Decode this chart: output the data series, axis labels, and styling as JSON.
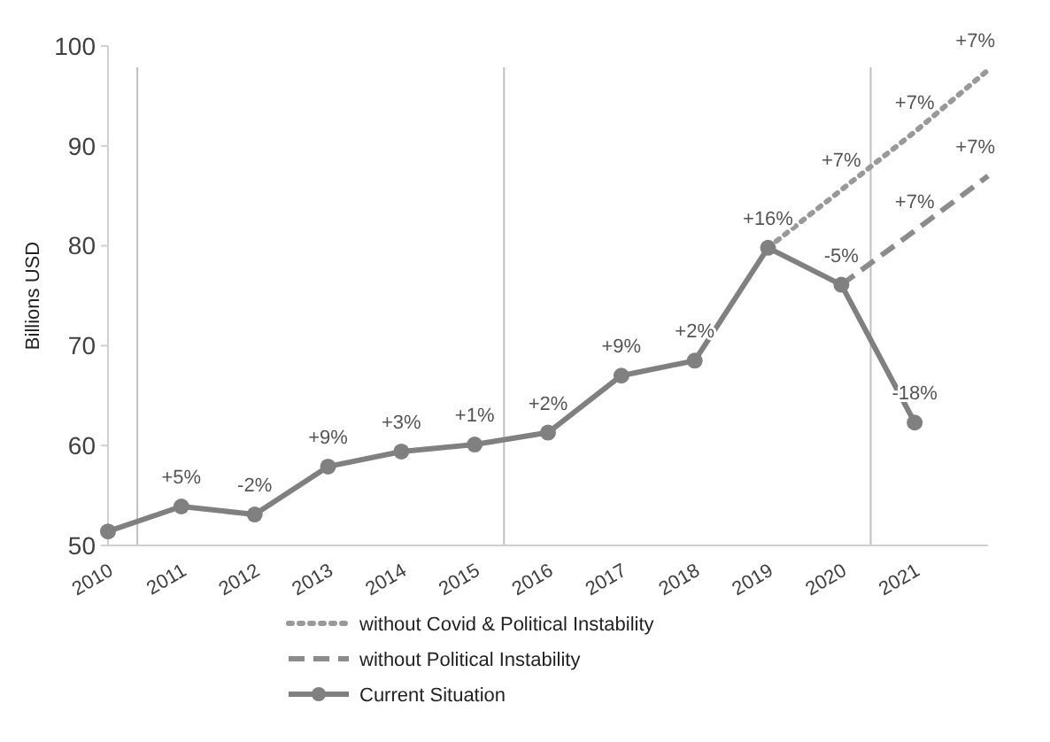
{
  "chart_data": {
    "type": "line",
    "ylabel": "Billions USD",
    "xlim": [
      2010,
      2022
    ],
    "xticks": [
      2010,
      2011,
      2012,
      2013,
      2014,
      2015,
      2016,
      2017,
      2018,
      2019,
      2020,
      2021
    ],
    "ylim": [
      50,
      100
    ],
    "yticks": [
      50,
      60,
      70,
      80,
      90,
      100
    ],
    "series": [
      {
        "name": "without Covid & Political Instability",
        "color": "#999999",
        "line_style": "dotted",
        "marker": "none",
        "x": [
          2019,
          2020,
          2021,
          2022
        ],
        "values": [
          79.8,
          85.6,
          91.4,
          97.6
        ]
      },
      {
        "name": "without Political Instability",
        "color": "#8c8c8c",
        "line_style": "dashed",
        "marker": "none",
        "x": [
          2020,
          2021,
          2022
        ],
        "values": [
          76.1,
          81.5,
          87
        ]
      },
      {
        "name": "Current Situation",
        "color": "#808080",
        "line_style": "solid",
        "marker": "circle",
        "x": [
          2010,
          2011,
          2012,
          2013,
          2014,
          2015,
          2016,
          2017,
          2018,
          2019,
          2020,
          2021
        ],
        "values": [
          51.4,
          53.9,
          53.1,
          57.9,
          59.4,
          60.1,
          61.3,
          67.0,
          68.5,
          79.8,
          76.1,
          62.3
        ]
      }
    ],
    "ref_lines": [
      {
        "axis": "x",
        "value": 2010.4,
        "color": "#bfbfbf"
      },
      {
        "axis": "x",
        "value": 2015.4,
        "color": "#bfbfbf"
      },
      {
        "axis": "x",
        "value": 2020.4,
        "color": "#bfbfbf"
      }
    ],
    "annotations": [
      {
        "text": "+5%",
        "x": 2011,
        "y": 53.9
      },
      {
        "text": "-2%",
        "x": 2012,
        "y": 53.1
      },
      {
        "text": "+9%",
        "x": 2013,
        "y": 57.9
      },
      {
        "text": "+3%",
        "x": 2014,
        "y": 59.4
      },
      {
        "text": "+1%",
        "x": 2015,
        "y": 60.1
      },
      {
        "text": "+2%",
        "x": 2016,
        "y": 61.3
      },
      {
        "text": "+9%",
        "x": 2017,
        "y": 67.0
      },
      {
        "text": "+2%",
        "x": 2018,
        "y": 68.5
      },
      {
        "text": "+16%",
        "x": 2019,
        "y": 79.8
      },
      {
        "text": "-5%",
        "x": 2020,
        "y": 76.1
      },
      {
        "text": "-18%",
        "x": 2021,
        "y": 62.3
      },
      {
        "text": "+7%",
        "x": 2020,
        "y": 85.6
      },
      {
        "text": "+7%",
        "x": 2021,
        "y": 91.4
      },
      {
        "text": "+7%",
        "x": 2022,
        "y": 97.6
      },
      {
        "text": "+7%",
        "x": 2021,
        "y": 81.5
      },
      {
        "text": "+7%",
        "x": 2022,
        "y": 87
      }
    ],
    "grid": false,
    "legend": "bottom"
  }
}
